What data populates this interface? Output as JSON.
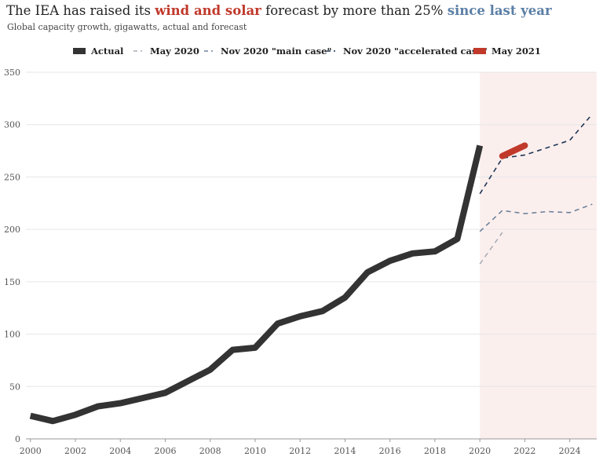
{
  "title": {
    "part1": "The IEA has raised its ",
    "highlight1": "wind and solar",
    "part2": " forecast by more than 25% ",
    "highlight2": "since last year"
  },
  "subtitle": "Global capacity growth, gigawatts, actual and forecast",
  "colors": {
    "actual": "#333333",
    "may2020": "#a7aeb6",
    "nov2020_main": "#6d809a",
    "nov2020_accelerated": "#1f3656",
    "may2021": "#c0392b",
    "forecast_band": "#fbefee",
    "grid": "#e6e6e6"
  },
  "chart_data": {
    "type": "line",
    "xlim": [
      1999.8,
      2025.2
    ],
    "ylim": [
      0,
      350
    ],
    "xticks": [
      2000,
      2002,
      2004,
      2006,
      2008,
      2010,
      2012,
      2014,
      2016,
      2018,
      2020,
      2022,
      2024
    ],
    "yticks": [
      0,
      50,
      100,
      150,
      200,
      250,
      300,
      350
    ],
    "forecast_region": [
      2020,
      2025.2
    ],
    "grid": "horizontal",
    "legend_position": "top",
    "series": [
      {
        "name": "Actual",
        "style": "solid-thick",
        "x": [
          2000,
          2001,
          2002,
          2003,
          2004,
          2005,
          2006,
          2007,
          2008,
          2009,
          2010,
          2011,
          2012,
          2013,
          2014,
          2015,
          2016,
          2017,
          2018,
          2019,
          2020
        ],
        "y": [
          22,
          17,
          23,
          31,
          34,
          39,
          44,
          55,
          66,
          85,
          87,
          110,
          117,
          122,
          135,
          159,
          170,
          177,
          179,
          191,
          280
        ]
      },
      {
        "name": "May 2020",
        "style": "dashed",
        "x": [
          2020,
          2021
        ],
        "y": [
          167,
          197
        ]
      },
      {
        "name": "Nov 2020 \"main case\"",
        "style": "dashed",
        "x": [
          2020,
          2021,
          2022,
          2023,
          2024,
          2025
        ],
        "y": [
          198,
          218,
          215,
          217,
          216,
          224
        ]
      },
      {
        "name": "Nov 2020 \"accelerated case\"",
        "style": "dashed",
        "x": [
          2020,
          2021,
          2022,
          2023,
          2024,
          2025
        ],
        "y": [
          234,
          268,
          271,
          278,
          285,
          310
        ]
      },
      {
        "name": "May 2021",
        "style": "solid-thick",
        "x": [
          2021,
          2022
        ],
        "y": [
          270,
          280
        ]
      }
    ]
  }
}
